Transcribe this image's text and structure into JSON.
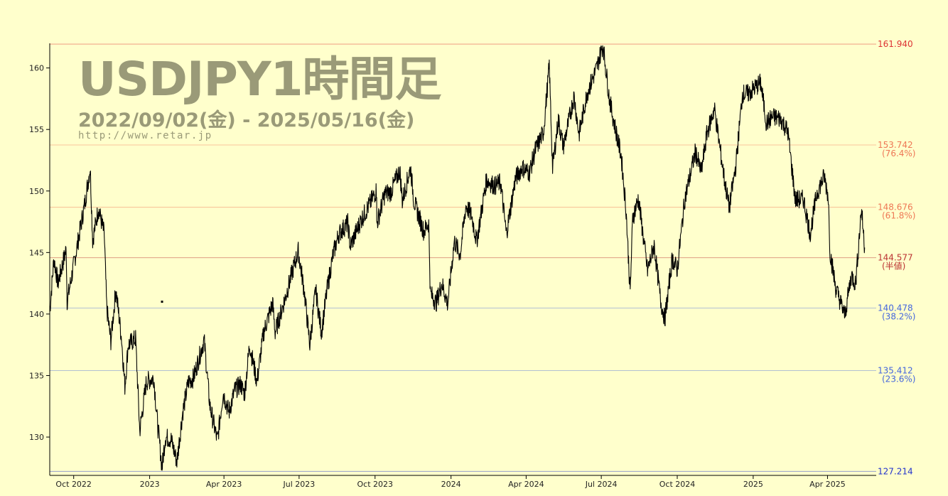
{
  "title": "USDJPY1時間足",
  "date_range": "2022/09/02(金) - 2025/05/16(金)",
  "url": "http://www.retar.jp",
  "chart_data": {
    "type": "line",
    "title": "USDJPY1時間足",
    "subtitle": "2022/09/02(金) - 2025/05/16(金)",
    "x_ticks": [
      "Oct 2022",
      "2023",
      "Apr 2023",
      "Jul 2023",
      "Oct 2023",
      "2024",
      "Apr 2024",
      "Jul 2024",
      "Oct 2024",
      "2025",
      "Apr 2025"
    ],
    "y_ticks": [
      130,
      135,
      140,
      145,
      150,
      155,
      160
    ],
    "ylim": [
      127.0,
      162.0
    ],
    "grid": false,
    "series": [
      {
        "color": "#000000",
        "points": [
          [
            "2022-09-02",
            140.2
          ],
          [
            "2022-09-07",
            144.5
          ],
          [
            "2022-09-12",
            142.5
          ],
          [
            "2022-09-22",
            145.3
          ],
          [
            "2022-09-23",
            141.0
          ],
          [
            "2022-10-03",
            144.7
          ],
          [
            "2022-10-14",
            148.8
          ],
          [
            "2022-10-21",
            151.9
          ],
          [
            "2022-10-24",
            146.0
          ],
          [
            "2022-10-31",
            148.6
          ],
          [
            "2022-11-07",
            146.5
          ],
          [
            "2022-11-10",
            140.5
          ],
          [
            "2022-11-15",
            137.8
          ],
          [
            "2022-11-21",
            142.0
          ],
          [
            "2022-11-28",
            138.0
          ],
          [
            "2022-12-02",
            134.1
          ],
          [
            "2022-12-06",
            137.5
          ],
          [
            "2022-12-15",
            138.0
          ],
          [
            "2022-12-20",
            130.5
          ],
          [
            "2022-12-28",
            134.5
          ],
          [
            "2023-01-06",
            134.8
          ],
          [
            "2023-01-10",
            131.5
          ],
          [
            "2023-01-16",
            127.5
          ],
          [
            "2023-01-20",
            130.0
          ],
          [
            "2023-01-27",
            129.8
          ],
          [
            "2023-02-03",
            128.0
          ],
          [
            "2023-02-10",
            132.0
          ],
          [
            "2023-02-17",
            134.5
          ],
          [
            "2023-02-23",
            134.8
          ],
          [
            "2023-03-08",
            137.9
          ],
          [
            "2023-03-15",
            132.5
          ],
          [
            "2023-03-24",
            129.7
          ],
          [
            "2023-03-31",
            133.6
          ],
          [
            "2023-04-07",
            132.0
          ],
          [
            "2023-04-14",
            133.8
          ],
          [
            "2023-04-21",
            134.3
          ],
          [
            "2023-04-26",
            133.5
          ],
          [
            "2023-05-02",
            137.5
          ],
          [
            "2023-05-11",
            134.5
          ],
          [
            "2023-05-19",
            138.5
          ],
          [
            "2023-05-30",
            140.9
          ],
          [
            "2023-06-02",
            138.5
          ],
          [
            "2023-06-15",
            141.5
          ],
          [
            "2023-06-23",
            143.5
          ],
          [
            "2023-06-30",
            145.1
          ],
          [
            "2023-07-07",
            142.0
          ],
          [
            "2023-07-14",
            137.5
          ],
          [
            "2023-07-21",
            142.0
          ],
          [
            "2023-07-28",
            138.5
          ],
          [
            "2023-08-04",
            142.0
          ],
          [
            "2023-08-11",
            144.8
          ],
          [
            "2023-08-18",
            146.5
          ],
          [
            "2023-08-29",
            147.4
          ],
          [
            "2023-09-01",
            145.5
          ],
          [
            "2023-09-13",
            147.5
          ],
          [
            "2023-09-25",
            149.0
          ],
          [
            "2023-10-03",
            150.1
          ],
          [
            "2023-10-03",
            147.3
          ],
          [
            "2023-10-13",
            149.8
          ],
          [
            "2023-10-20",
            149.9
          ],
          [
            "2023-10-31",
            151.7
          ],
          [
            "2023-11-03",
            149.2
          ],
          [
            "2023-11-13",
            151.9
          ],
          [
            "2023-11-17",
            149.2
          ],
          [
            "2023-11-29",
            146.7
          ],
          [
            "2023-12-05",
            147.4
          ],
          [
            "2023-12-07",
            141.7
          ],
          [
            "2023-12-14",
            140.9
          ],
          [
            "2023-12-21",
            142.5
          ],
          [
            "2023-12-28",
            140.8
          ],
          [
            "2024-01-05",
            145.9
          ],
          [
            "2024-01-12",
            144.8
          ],
          [
            "2024-01-19",
            148.8
          ],
          [
            "2024-01-26",
            148.0
          ],
          [
            "2024-02-01",
            145.9
          ],
          [
            "2024-02-13",
            150.9
          ],
          [
            "2024-02-23",
            150.4
          ],
          [
            "2024-03-01",
            150.7
          ],
          [
            "2024-03-08",
            146.5
          ],
          [
            "2024-03-19",
            151.0
          ],
          [
            "2024-03-27",
            151.9
          ],
          [
            "2024-04-05",
            151.5
          ],
          [
            "2024-04-12",
            153.3
          ],
          [
            "2024-04-22",
            154.8
          ],
          [
            "2024-04-29",
            160.2
          ],
          [
            "2024-05-03",
            151.9
          ],
          [
            "2024-05-10",
            155.8
          ],
          [
            "2024-05-16",
            153.6
          ],
          [
            "2024-05-29",
            157.7
          ],
          [
            "2024-06-04",
            154.6
          ],
          [
            "2024-06-14",
            158.0
          ],
          [
            "2024-06-25",
            159.9
          ],
          [
            "2024-07-03",
            161.9
          ],
          [
            "2024-07-11",
            157.4
          ],
          [
            "2024-07-17",
            155.4
          ],
          [
            "2024-07-25",
            152.9
          ],
          [
            "2024-07-31",
            148.5
          ],
          [
            "2024-08-05",
            141.7
          ],
          [
            "2024-08-08",
            147.8
          ],
          [
            "2024-08-15",
            149.4
          ],
          [
            "2024-08-26",
            143.5
          ],
          [
            "2024-09-03",
            145.6
          ],
          [
            "2024-09-11",
            141.0
          ],
          [
            "2024-09-16",
            139.6
          ],
          [
            "2024-09-25",
            144.5
          ],
          [
            "2024-10-01",
            143.6
          ],
          [
            "2024-10-10",
            149.3
          ],
          [
            "2024-10-23",
            153.2
          ],
          [
            "2024-10-30",
            151.5
          ],
          [
            "2024-11-06",
            154.7
          ],
          [
            "2024-11-15",
            156.7
          ],
          [
            "2024-11-27",
            151.0
          ],
          [
            "2024-12-03",
            148.6
          ],
          [
            "2024-12-11",
            152.1
          ],
          [
            "2024-12-19",
            157.9
          ],
          [
            "2024-12-26",
            157.9
          ],
          [
            "2025-01-10",
            158.8
          ],
          [
            "2025-01-17",
            155.5
          ],
          [
            "2025-01-24",
            156.0
          ],
          [
            "2025-02-03",
            155.9
          ],
          [
            "2025-02-12",
            154.8
          ],
          [
            "2025-02-21",
            149.3
          ],
          [
            "2025-03-03",
            149.3
          ],
          [
            "2025-03-11",
            146.5
          ],
          [
            "2025-03-19",
            149.8
          ],
          [
            "2025-03-28",
            151.2
          ],
          [
            "2025-04-02",
            149.5
          ],
          [
            "2025-04-04",
            145.1
          ],
          [
            "2025-04-11",
            142.1
          ],
          [
            "2025-04-22",
            139.9
          ],
          [
            "2025-04-30",
            143.2
          ],
          [
            "2025-05-05",
            142.4
          ],
          [
            "2025-05-09",
            145.9
          ],
          [
            "2025-05-12",
            148.6
          ],
          [
            "2025-05-16",
            145.4
          ]
        ]
      }
    ],
    "horizontal_lines": [
      {
        "value": 161.94,
        "label": "161.940",
        "sublabel": "",
        "color": "#dd3333"
      },
      {
        "value": 153.742,
        "label": "153.742",
        "sublabel": "(76.4%)",
        "color": "#ee7755"
      },
      {
        "value": 148.676,
        "label": "148.676",
        "sublabel": "(61.8%)",
        "color": "#ee7755"
      },
      {
        "value": 144.577,
        "label": "144.577",
        "sublabel": "(半値)",
        "color": "#bb3333"
      },
      {
        "value": 140.478,
        "label": "140.478",
        "sublabel": "(38.2%)",
        "color": "#4466dd"
      },
      {
        "value": 135.412,
        "label": "135.412",
        "sublabel": "(23.6%)",
        "color": "#4466dd"
      },
      {
        "value": 127.214,
        "label": "127.214",
        "sublabel": "",
        "color": "#2233cc"
      }
    ],
    "x_range": [
      "2022-09-02",
      "2025-05-30"
    ]
  }
}
